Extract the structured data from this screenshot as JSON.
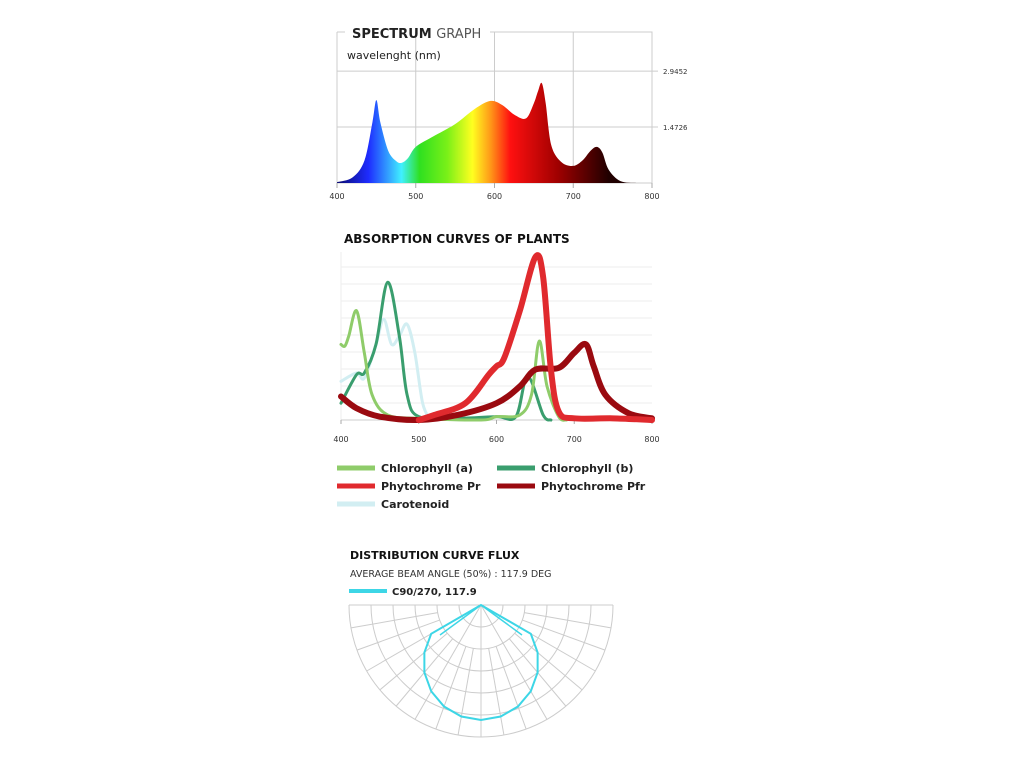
{
  "chart_data": [
    {
      "type": "area",
      "title_bold": "SPECTRUM",
      "title_light": "GRAPH",
      "subtitle": "wavelenght (nm)",
      "xlim": [
        400,
        800
      ],
      "xticks": [
        "400",
        "500",
        "600",
        "700",
        "800"
      ],
      "yticks": [
        {
          "value": 2.9452,
          "label": "2.9452"
        },
        {
          "value": 1.4726,
          "label": "1.4726"
        }
      ],
      "x": [
        400,
        420,
        435,
        445,
        450,
        455,
        465,
        475,
        482,
        490,
        500,
        520,
        550,
        575,
        595,
        610,
        625,
        640,
        650,
        655,
        660,
        665,
        672,
        685,
        700,
        712,
        722,
        730,
        737,
        745,
        760,
        780
      ],
      "y": [
        0.02,
        0.15,
        0.6,
        1.6,
        2.18,
        1.6,
        0.85,
        0.58,
        0.53,
        0.65,
        0.95,
        1.2,
        1.55,
        1.95,
        2.16,
        2.05,
        1.8,
        1.7,
        2.1,
        2.4,
        2.63,
        2.1,
        1.0,
        0.55,
        0.45,
        0.6,
        0.85,
        0.95,
        0.8,
        0.35,
        0.05,
        0.0
      ],
      "gradient": [
        [
          400,
          "#0a0a70"
        ],
        [
          440,
          "#1e2cff"
        ],
        [
          482,
          "#40f0ff"
        ],
        [
          505,
          "#2fe020"
        ],
        [
          540,
          "#7af018"
        ],
        [
          572,
          "#ffff20"
        ],
        [
          595,
          "#ff9818"
        ],
        [
          620,
          "#ff1010"
        ],
        [
          680,
          "#a00000"
        ],
        [
          745,
          "#200000"
        ]
      ]
    },
    {
      "type": "line",
      "title": "ABSORPTION CURVES OF PLANTS",
      "xlim": [
        400,
        800
      ],
      "ylim": [
        0,
        100
      ],
      "xticks": [
        "400",
        "500",
        "600",
        "700",
        "800"
      ],
      "series": [
        {
          "name": "Chlorophyll (a)",
          "color": "#8fcc6a",
          "width": 3,
          "x": [
            400,
            405,
            410,
            420,
            430,
            440,
            460,
            500,
            580,
            600,
            630,
            645,
            655,
            665,
            680,
            690
          ],
          "y": [
            45,
            44,
            50,
            65,
            40,
            15,
            3,
            1,
            0,
            2,
            3,
            15,
            47,
            20,
            2,
            0
          ]
        },
        {
          "name": "Chlorophyll (b)",
          "color": "#3a9e6e",
          "width": 3,
          "x": [
            400,
            420,
            430,
            445,
            460,
            475,
            485,
            500,
            550,
            600,
            625,
            640,
            660,
            670
          ],
          "y": [
            10,
            27,
            28,
            45,
            82,
            50,
            15,
            2,
            1,
            2,
            2,
            26,
            3,
            0
          ]
        },
        {
          "name": "Phytochrome Pr",
          "color": "#e02a2e",
          "width": 6,
          "x": [
            500,
            520,
            560,
            590,
            600,
            610,
            630,
            650,
            660,
            670,
            680,
            700,
            750,
            800
          ],
          "y": [
            0,
            3,
            10,
            27,
            32,
            37,
            65,
            97,
            85,
            30,
            5,
            1,
            1,
            0
          ]
        },
        {
          "name": "Phytochrome Pfr",
          "color": "#9a0a10",
          "width": 6,
          "x": [
            400,
            420,
            450,
            500,
            550,
            600,
            630,
            650,
            680,
            700,
            715,
            725,
            740,
            770,
            800
          ],
          "y": [
            14,
            7,
            2,
            0,
            3,
            10,
            20,
            30,
            31,
            40,
            45,
            32,
            15,
            4,
            1
          ]
        },
        {
          "name": "Carotenoid",
          "color": "#d2eef2",
          "width": 3,
          "x": [
            400,
            420,
            430,
            445,
            455,
            465,
            475,
            485,
            495,
            505,
            515
          ],
          "y": [
            23,
            28,
            25,
            45,
            60,
            45,
            50,
            57,
            40,
            10,
            0
          ]
        }
      ]
    },
    {
      "type": "polar",
      "title": "DISTRIBUTION CURVE FLUX",
      "subtitle": "AVERAGE BEAM ANGLE  (50%) : 117.9 DEG",
      "series": [
        {
          "name": "C90/270, 117.9",
          "color": "#3dd6e6"
        }
      ],
      "beam_angle": 117.9
    }
  ]
}
